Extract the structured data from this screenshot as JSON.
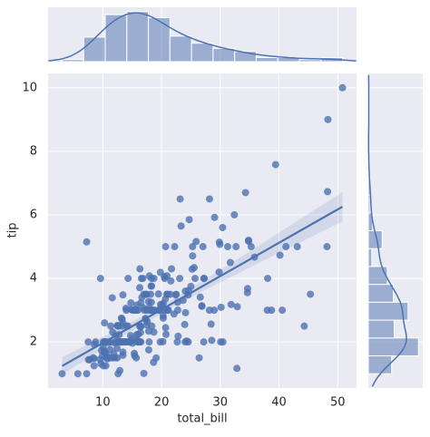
{
  "chart_data": {
    "type": "scatter",
    "x_label": "total_bill",
    "y_label": "tip",
    "x": [
      16.99,
      10.34,
      21.01,
      23.68,
      24.59,
      25.29,
      8.77,
      26.88,
      15.04,
      14.78,
      10.27,
      35.26,
      15.42,
      18.43,
      14.83,
      21.58,
      10.33,
      16.29,
      16.97,
      20.65,
      17.92,
      20.29,
      15.77,
      39.42,
      19.82,
      17.81,
      13.37,
      12.69,
      21.7,
      19.65,
      9.55,
      18.35,
      15.06,
      20.69,
      17.78,
      24.06,
      16.31,
      16.93,
      18.69,
      31.27,
      16.04,
      17.46,
      13.94,
      9.68,
      30.4,
      18.29,
      22.23,
      32.4,
      28.55,
      18.04,
      12.54,
      10.29,
      34.81,
      9.94,
      25.56,
      19.49,
      38.01,
      26.41,
      11.24,
      48.27,
      20.29,
      13.81,
      11.02,
      18.29,
      17.59,
      20.08,
      16.45,
      3.07,
      20.23,
      15.01,
      12.02,
      17.07,
      26.86,
      25.28,
      14.73,
      10.51,
      17.92,
      27.2,
      22.76,
      17.29,
      19.44,
      16.66,
      10.07,
      32.68,
      15.98,
      34.83,
      13.03,
      18.28,
      24.71,
      21.16,
      28.97,
      22.49,
      5.75,
      16.32,
      22.75,
      40.17,
      27.28,
      12.03,
      21.01,
      12.46,
      11.35,
      15.38,
      44.3,
      22.42,
      20.92,
      15.36,
      20.49,
      25.21,
      18.24,
      14.31,
      14.0,
      7.25,
      38.07,
      23.95,
      25.71,
      17.31,
      29.93,
      10.65,
      12.43,
      24.08,
      11.69,
      13.42,
      14.26,
      15.95,
      12.48,
      29.8,
      8.52,
      14.52,
      11.38,
      22.82,
      19.08,
      20.27,
      11.17,
      12.26,
      18.26,
      8.51,
      10.33,
      14.15,
      16.0,
      13.16,
      17.47,
      34.3,
      41.19,
      27.05,
      16.43,
      8.35,
      18.64,
      11.87,
      9.78,
      7.51,
      14.07,
      13.13,
      17.26,
      24.55,
      19.77,
      29.85,
      48.17,
      25.0,
      13.39,
      16.49,
      21.5,
      12.66,
      16.21,
      13.81,
      17.51,
      24.52,
      20.76,
      31.71,
      10.59,
      10.63,
      50.81,
      15.81,
      7.25,
      31.85,
      16.82,
      32.9,
      17.89,
      14.48,
      9.6,
      34.63,
      34.65,
      23.33,
      45.35,
      23.17,
      40.55,
      20.69,
      20.9,
      30.46,
      18.15,
      23.1,
      15.69,
      19.81,
      28.44,
      15.48,
      16.58,
      7.56,
      10.34,
      43.11,
      13.0,
      13.51,
      18.71,
      12.74,
      13.0,
      16.4,
      20.53,
      16.47,
      26.59,
      38.73,
      24.27,
      12.76,
      30.06,
      25.89,
      48.33,
      13.27,
      28.17,
      12.9,
      28.15,
      11.59,
      7.74,
      30.14,
      12.16,
      13.42,
      8.58,
      15.98,
      13.42,
      16.27,
      10.09,
      20.45,
      13.28,
      22.12,
      24.01,
      15.69,
      11.61,
      10.77,
      15.53,
      10.07,
      12.6,
      32.83,
      35.83,
      29.03,
      27.18,
      22.67,
      17.82,
      18.78
    ],
    "y": [
      1.01,
      1.66,
      3.5,
      3.31,
      3.61,
      4.71,
      2.0,
      3.12,
      1.96,
      3.23,
      1.71,
      5.0,
      1.57,
      3.0,
      3.02,
      3.92,
      1.67,
      3.71,
      3.5,
      3.35,
      4.08,
      2.75,
      2.23,
      7.58,
      3.18,
      2.34,
      2.0,
      2.0,
      4.3,
      3.0,
      1.45,
      2.5,
      3.0,
      2.45,
      3.27,
      3.6,
      2.0,
      3.07,
      2.31,
      5.0,
      2.24,
      2.54,
      3.06,
      1.32,
      5.6,
      3.0,
      5.0,
      6.0,
      2.05,
      3.0,
      2.5,
      2.6,
      5.2,
      1.56,
      4.34,
      3.51,
      3.0,
      1.5,
      1.76,
      6.73,
      3.21,
      2.0,
      1.98,
      3.76,
      2.64,
      3.15,
      2.47,
      1.0,
      2.01,
      2.09,
      1.97,
      3.0,
      3.14,
      5.0,
      2.2,
      1.25,
      3.08,
      4.0,
      3.0,
      2.71,
      3.0,
      3.4,
      1.83,
      5.0,
      2.03,
      5.17,
      2.0,
      4.0,
      5.85,
      3.0,
      3.0,
      3.5,
      1.0,
      4.3,
      3.25,
      4.73,
      4.0,
      1.5,
      3.0,
      1.5,
      2.5,
      3.0,
      2.5,
      3.48,
      4.08,
      1.64,
      4.06,
      4.29,
      3.76,
      4.0,
      3.0,
      1.0,
      4.0,
      2.55,
      4.0,
      3.5,
      5.07,
      1.5,
      1.8,
      2.92,
      2.31,
      1.68,
      2.5,
      2.0,
      2.52,
      4.2,
      1.48,
      2.0,
      2.0,
      2.18,
      1.5,
      2.83,
      1.5,
      2.0,
      3.25,
      1.25,
      2.0,
      2.0,
      2.0,
      2.75,
      3.5,
      6.7,
      5.0,
      5.0,
      2.3,
      1.5,
      1.36,
      1.63,
      1.73,
      2.0,
      2.5,
      2.0,
      2.74,
      2.0,
      2.0,
      5.14,
      5.0,
      3.75,
      2.61,
      2.0,
      3.5,
      2.5,
      2.0,
      2.0,
      3.0,
      3.48,
      2.24,
      4.5,
      1.61,
      2.0,
      10.0,
      3.16,
      5.15,
      3.18,
      4.0,
      3.11,
      2.0,
      2.0,
      4.0,
      3.55,
      3.68,
      5.65,
      3.5,
      6.5,
      3.0,
      5.0,
      3.5,
      2.0,
      3.5,
      4.0,
      1.5,
      4.19,
      2.56,
      2.02,
      4.0,
      1.44,
      2.0,
      5.0,
      2.0,
      2.0,
      4.0,
      2.01,
      2.0,
      2.5,
      4.0,
      3.23,
      3.41,
      3.0,
      2.03,
      2.23,
      2.0,
      5.16,
      9.0,
      2.5,
      6.5,
      1.1,
      3.0,
      1.5,
      1.44,
      3.09,
      2.2,
      3.48,
      1.92,
      3.0,
      1.58,
      2.5,
      2.0,
      3.0,
      2.72,
      2.88,
      2.0,
      3.0,
      3.39,
      1.47,
      3.0,
      1.25,
      1.0,
      1.17,
      4.67,
      5.92,
      2.0,
      2.0,
      1.75,
      3.0
    ],
    "xlim": [
      0.68,
      53.2
    ],
    "ylim": [
      0.55,
      10.45
    ],
    "xticks": [
      10,
      20,
      30,
      40,
      50
    ],
    "yticks": [
      2,
      4,
      6,
      8,
      10
    ],
    "color": "#4c72b0",
    "grid": true
  }
}
